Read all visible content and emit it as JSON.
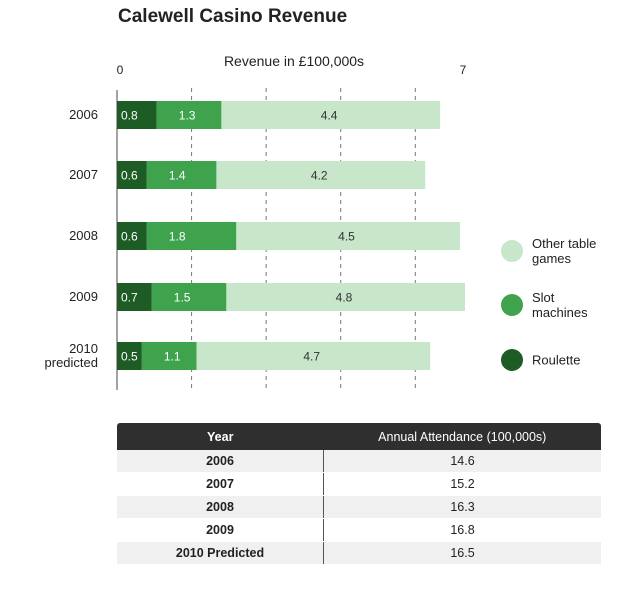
{
  "chart_data": {
    "type": "bar",
    "orientation": "horizontal",
    "stacked": true,
    "title": "Calewell Casino Revenue",
    "xlabel": "Revenue in £100,000s",
    "xlim": [
      0,
      7
    ],
    "x_tick_labels": [
      "0",
      "7"
    ],
    "categories": [
      "2006",
      "2007",
      "2008",
      "2009",
      "2010 predicted"
    ],
    "series": [
      {
        "name": "Roulette",
        "values": [
          0.8,
          0.6,
          0.6,
          0.7,
          0.5
        ],
        "color": "#1e5c25"
      },
      {
        "name": "Slot machines",
        "values": [
          1.3,
          1.4,
          1.8,
          1.5,
          1.1
        ],
        "color": "#3fa34d"
      },
      {
        "name": "Other table games",
        "values": [
          4.4,
          4.2,
          4.5,
          4.8,
          4.7
        ],
        "color": "#c8e6c9"
      }
    ],
    "legend_position": "right",
    "grid": "vertical dashed"
  },
  "table": {
    "headers": [
      "Year",
      "Annual Attendance (100,000s)"
    ],
    "rows": [
      [
        "2006",
        "14.6"
      ],
      [
        "2007",
        "15.2"
      ],
      [
        "2008",
        "16.3"
      ],
      [
        "2009",
        "16.8"
      ],
      [
        "2010 Predicted",
        "16.5"
      ]
    ]
  }
}
